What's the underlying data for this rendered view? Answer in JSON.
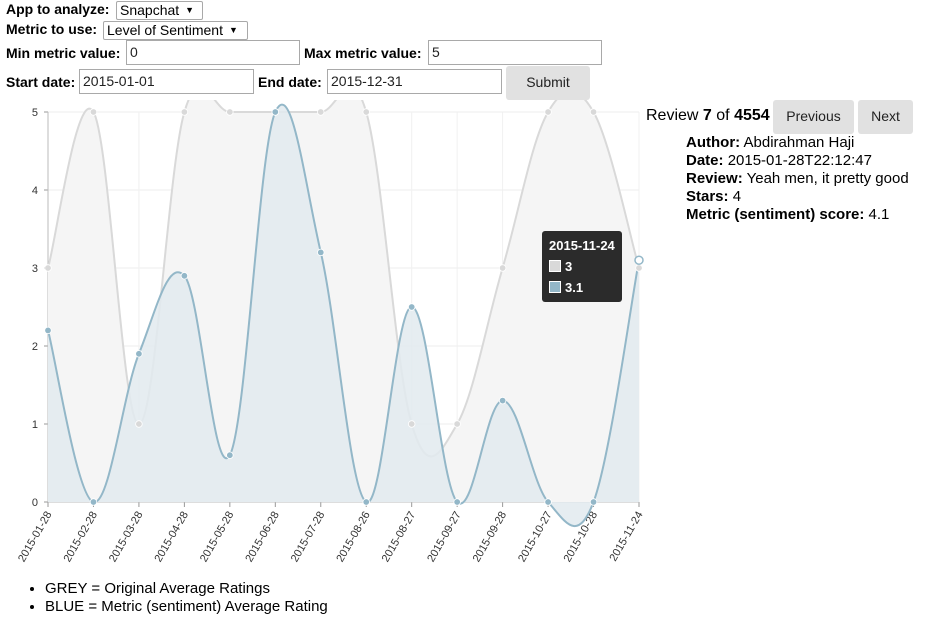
{
  "form": {
    "app_label": "App to analyze:",
    "app_value": "Snapchat",
    "metric_label": "Metric to use:",
    "metric_value": "Level of Sentiment",
    "min_label": "Min metric value:",
    "min_value": "0",
    "max_label": "Max metric value:",
    "max_value": "5",
    "start_label": "Start date:",
    "start_value": "2015-01-01",
    "end_label": "End date:",
    "end_value": "2015-12-31",
    "submit_label": "Submit"
  },
  "review": {
    "prefix": "Review",
    "index": "7",
    "of_word": "of",
    "total": "4554",
    "prev_label": "Previous",
    "next_label": "Next",
    "author_label": "Author:",
    "author_value": "Abdirahman Haji",
    "date_label": "Date:",
    "date_value": "2015-01-28T22:12:47",
    "review_label": "Review:",
    "review_value": "Yeah men, it pretty good",
    "stars_label": "Stars:",
    "stars_value": "4",
    "metric_label": "Metric (sentiment) score:",
    "metric_value": "4.1"
  },
  "tooltip": {
    "date": "2015-11-24",
    "grey_value": "3",
    "blue_value": "3.1"
  },
  "legend": {
    "grey": "GREY = Original Average Ratings",
    "blue": "BLUE = Metric (sentiment) Average Rating"
  },
  "colors": {
    "grey_line": "#d9d9d9",
    "grey_fill": "#f5f5f5",
    "blue_line": "#93b7c8",
    "blue_fill": "#e2eaee",
    "tooltip_bg": "#2b2b2b"
  },
  "chart_data": {
    "type": "area",
    "x": [
      "2015-01-28",
      "2015-02-28",
      "2015-03-28",
      "2015-04-28",
      "2015-05-28",
      "2015-06-28",
      "2015-07-28",
      "2015-08-26",
      "2015-08-27",
      "2015-09-27",
      "2015-09-28",
      "2015-10-27",
      "2015-10-28",
      "2015-11-24"
    ],
    "series": [
      {
        "name": "GREY",
        "values": [
          3,
          5,
          1,
          5,
          5,
          5,
          5,
          5,
          1,
          1,
          3,
          5,
          5,
          3
        ],
        "color": "#d9d9d9"
      },
      {
        "name": "BLUE",
        "values": [
          2.2,
          0,
          1.9,
          2.9,
          0.6,
          5,
          3.2,
          0,
          2.5,
          0,
          1.3,
          0,
          0,
          3.1
        ],
        "color": "#93b7c8"
      }
    ],
    "yticks": [
      "0",
      "1",
      "2",
      "3",
      "4",
      "5"
    ],
    "ylim": [
      0,
      5
    ],
    "grid": true
  }
}
